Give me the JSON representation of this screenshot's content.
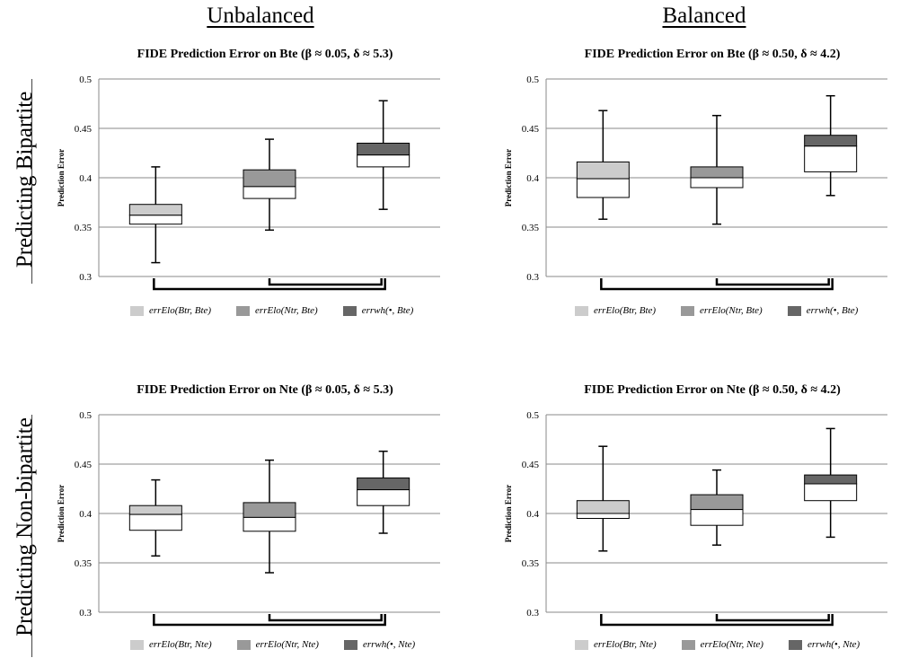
{
  "columns": [
    "Unbalanced",
    "Balanced"
  ],
  "rows": [
    "Predicting Bipartite",
    "Predicting Non-bipartite"
  ],
  "legend_colors": [
    "#cccccc",
    "#999999",
    "#666666"
  ],
  "legends": [
    [
      "errElo(Btr, Bte)",
      "errElo(Ntr, Bte)",
      "errwh(•, Bte)"
    ],
    [
      "errElo(Btr, Nte)",
      "errElo(Ntr, Nte)",
      "errwh(•, Nte)"
    ]
  ],
  "chart_data": [
    {
      "type": "box",
      "title": "FIDE Prediction Error on Bte (β ≈ 0.05, δ ≈ 5.3)",
      "ylabel": "Prediction Error",
      "ylim": [
        0.3,
        0.5
      ],
      "yticks": [
        "0.3",
        "0.35",
        "0.4",
        "0.45",
        "0.5"
      ],
      "grid": true,
      "series": [
        {
          "name": "errElo(Btr, Bte)",
          "min": 0.314,
          "q1": 0.353,
          "median": 0.362,
          "q3": 0.373,
          "max": 0.411
        },
        {
          "name": "errElo(Ntr, Bte)",
          "min": 0.347,
          "q1": 0.379,
          "median": 0.391,
          "q3": 0.408,
          "max": 0.439
        },
        {
          "name": "errwh(•, Bte)",
          "min": 0.368,
          "q1": 0.411,
          "median": 0.423,
          "q3": 0.435,
          "max": 0.478
        }
      ]
    },
    {
      "type": "box",
      "title": "FIDE Prediction Error on Bte (β ≈ 0.50, δ ≈ 4.2)",
      "ylabel": "Prediction Error",
      "ylim": [
        0.3,
        0.5
      ],
      "yticks": [
        "0.3",
        "0.35",
        "0.4",
        "0.45",
        "0.5"
      ],
      "grid": true,
      "series": [
        {
          "name": "errElo(Btr, Bte)",
          "min": 0.358,
          "q1": 0.38,
          "median": 0.399,
          "q3": 0.416,
          "max": 0.468
        },
        {
          "name": "errElo(Ntr, Bte)",
          "min": 0.353,
          "q1": 0.39,
          "median": 0.4,
          "q3": 0.411,
          "max": 0.463
        },
        {
          "name": "errwh(•, Bte)",
          "min": 0.382,
          "q1": 0.406,
          "median": 0.432,
          "q3": 0.443,
          "max": 0.483
        }
      ]
    },
    {
      "type": "box",
      "title": "FIDE Prediction Error on Nte (β ≈ 0.05, δ ≈ 5.3)",
      "ylabel": "Prediction Error",
      "ylim": [
        0.3,
        0.5
      ],
      "yticks": [
        "0.3",
        "0.35",
        "0.4",
        "0.45",
        "0.5"
      ],
      "grid": true,
      "series": [
        {
          "name": "errElo(Btr, Nte)",
          "min": 0.357,
          "q1": 0.383,
          "median": 0.399,
          "q3": 0.408,
          "max": 0.434
        },
        {
          "name": "errElo(Ntr, Nte)",
          "min": 0.34,
          "q1": 0.382,
          "median": 0.396,
          "q3": 0.411,
          "max": 0.454
        },
        {
          "name": "errwh(•, Nte)",
          "min": 0.38,
          "q1": 0.408,
          "median": 0.424,
          "q3": 0.436,
          "max": 0.463
        }
      ]
    },
    {
      "type": "box",
      "title": "FIDE Prediction Error on Nte (β ≈ 0.50, δ ≈ 4.2)",
      "ylabel": "Prediction Error",
      "ylim": [
        0.3,
        0.5
      ],
      "yticks": [
        "0.3",
        "0.35",
        "0.4",
        "0.45",
        "0.5"
      ],
      "grid": true,
      "series": [
        {
          "name": "errElo(Btr, Nte)",
          "min": 0.362,
          "q1": 0.395,
          "median": 0.4,
          "q3": 0.413,
          "max": 0.468
        },
        {
          "name": "errElo(Ntr, Nte)",
          "min": 0.368,
          "q1": 0.388,
          "median": 0.404,
          "q3": 0.419,
          "max": 0.444
        },
        {
          "name": "errwh(•, Nte)",
          "min": 0.376,
          "q1": 0.413,
          "median": 0.43,
          "q3": 0.439,
          "max": 0.486
        }
      ]
    }
  ]
}
